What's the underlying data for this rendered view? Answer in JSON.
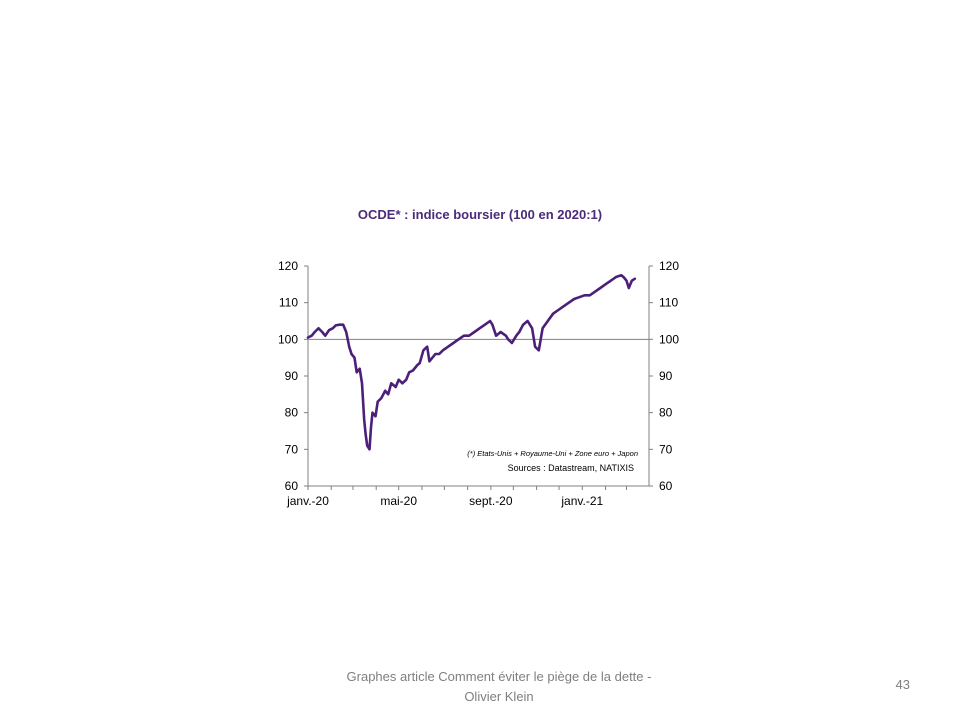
{
  "slide": {
    "footer_text": "Graphes article Comment  éviter le piège de la dette - Olivier Klein",
    "page_number": "43"
  },
  "chart_data": {
    "type": "line",
    "title": "OCDE* : indice boursier (100 en 2020:1)",
    "xlabel": "",
    "ylabel": "",
    "x_tick_labels": [
      "janv.-20",
      "mai-20",
      "sept.-20",
      "janv.-21"
    ],
    "xlim": [
      "2020-01-01",
      "2021-03-31"
    ],
    "ylim": [
      60,
      120
    ],
    "y_ticks": [
      60,
      70,
      80,
      90,
      100,
      110,
      120
    ],
    "y_axis_right": true,
    "reference_line": 100,
    "line_color": "#4b1f7a",
    "reference_line_color": "#808080",
    "note": "(*) Etats-Unis + Royaume-Uni + Zone euro + Japon",
    "sources": "Sources : Datastream, NATIXIS",
    "series": [
      {
        "x": [
          "2020-01-01",
          "2020-01-06",
          "2020-01-10",
          "2020-01-15",
          "2020-01-20",
          "2020-01-24",
          "2020-01-29",
          "2020-02-03",
          "2020-02-07",
          "2020-02-12",
          "2020-02-17",
          "2020-02-21",
          "2020-02-25",
          "2020-02-28",
          "2020-03-03",
          "2020-03-06",
          "2020-03-10",
          "2020-03-13",
          "2020-03-16",
          "2020-03-18",
          "2020-03-20",
          "2020-03-23",
          "2020-03-25",
          "2020-03-27",
          "2020-03-31",
          "2020-04-03",
          "2020-04-08",
          "2020-04-13",
          "2020-04-17",
          "2020-04-21",
          "2020-04-27",
          "2020-05-01",
          "2020-05-06",
          "2020-05-11",
          "2020-05-15",
          "2020-05-20",
          "2020-05-26",
          "2020-05-29",
          "2020-06-03",
          "2020-06-08",
          "2020-06-11",
          "2020-06-15",
          "2020-06-19",
          "2020-06-24",
          "2020-06-29",
          "2020-07-06",
          "2020-07-13",
          "2020-07-20",
          "2020-07-27",
          "2020-08-03",
          "2020-08-10",
          "2020-08-17",
          "2020-08-24",
          "2020-08-31",
          "2020-09-03",
          "2020-09-08",
          "2020-09-14",
          "2020-09-21",
          "2020-09-24",
          "2020-09-29",
          "2020-10-05",
          "2020-10-09",
          "2020-10-14",
          "2020-10-20",
          "2020-10-26",
          "2020-10-30",
          "2020-11-04",
          "2020-11-09",
          "2020-11-16",
          "2020-11-23",
          "2020-11-30",
          "2020-12-07",
          "2020-12-14",
          "2020-12-21",
          "2020-12-28",
          "2021-01-04",
          "2021-01-11",
          "2021-01-18",
          "2021-01-25",
          "2021-02-01",
          "2021-02-08",
          "2021-02-15",
          "2021-02-22",
          "2021-02-25",
          "2021-03-01",
          "2021-03-04",
          "2021-03-08",
          "2021-03-12"
        ],
        "y": [
          100.5,
          101,
          102,
          103,
          102,
          101,
          102.5,
          103,
          103.8,
          104,
          104,
          102,
          98,
          96,
          95,
          91,
          92,
          88,
          78,
          74,
          71,
          70,
          76,
          80,
          79,
          83,
          84,
          86,
          85,
          88,
          87,
          89,
          88,
          89,
          91,
          91.5,
          93,
          93.5,
          97,
          98,
          94,
          95,
          96,
          96,
          97,
          98,
          99,
          100,
          101,
          101,
          102,
          103,
          104,
          105,
          104,
          101,
          102,
          101,
          100,
          99,
          101,
          102,
          104,
          105,
          103,
          98,
          97,
          103,
          105,
          107,
          108,
          109,
          110,
          111,
          111.5,
          112,
          112,
          113,
          114,
          115,
          116,
          117,
          117.5,
          117,
          116,
          114,
          116,
          116.5
        ]
      }
    ]
  }
}
